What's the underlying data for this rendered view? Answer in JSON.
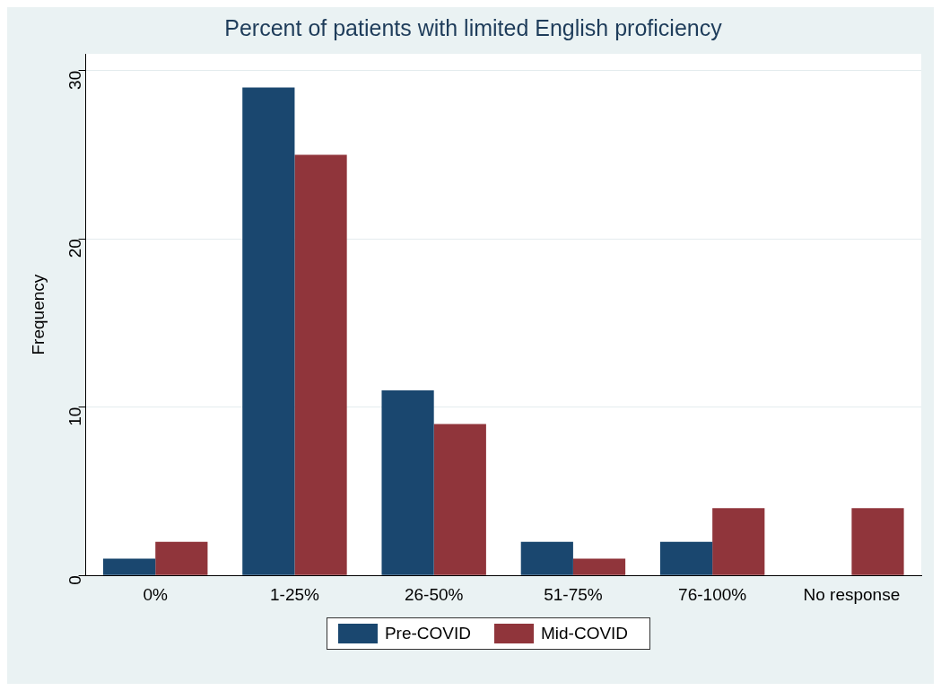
{
  "chart_data": {
    "type": "bar",
    "title": "Percent of patients with limited English proficiency",
    "ylabel": "Frequency",
    "categories": [
      "0%",
      "1-25%",
      "26-50%",
      "51-75%",
      "76-100%",
      "No response"
    ],
    "series": [
      {
        "name": "Pre-COVID",
        "color": "#1a476f",
        "values": [
          1,
          29,
          11,
          2,
          2,
          0
        ]
      },
      {
        "name": "Mid-COVID",
        "color": "#90353b",
        "values": [
          2,
          25,
          9,
          1,
          4,
          4
        ]
      }
    ],
    "ylim": [
      0,
      31
    ],
    "yticks": [
      0,
      10,
      20,
      30
    ],
    "grid": "y",
    "legend": "bottom"
  }
}
